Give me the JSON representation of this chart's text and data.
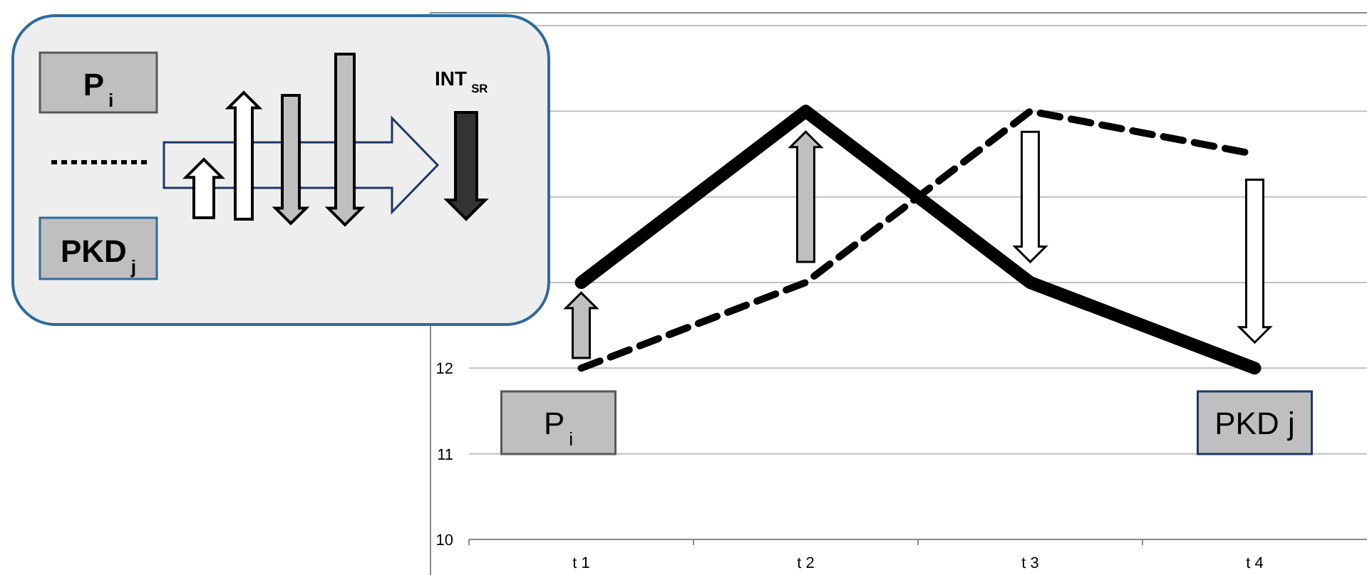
{
  "chart_data": {
    "type": "line",
    "categories": [
      "t 1",
      "t 2",
      "t 3",
      "t 4"
    ],
    "series": [
      {
        "color": "#000000",
        "line_style": "solid",
        "values": [
          13,
          15,
          13,
          12
        ]
      },
      {
        "color": "#000000",
        "line_style": "dashed",
        "values": [
          12,
          13,
          15,
          14.5
        ]
      }
    ],
    "ylim": [
      10,
      16
    ],
    "yticks": [
      10,
      11,
      12,
      {
        "value": 13,
        "label": null
      },
      {
        "value": 14,
        "label": null
      },
      {
        "value": 15,
        "label": null
      },
      {
        "value": 16,
        "label": null
      }
    ],
    "grid": "y",
    "marker": "none",
    "annotations": [
      "P$_{i}$",
      "PKD j",
      "P$_{i}$",
      "PKD$_{j}$",
      "INT$_{SR}$"
    ]
  }
}
